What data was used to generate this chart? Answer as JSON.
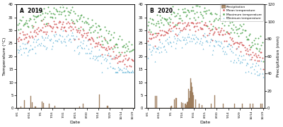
{
  "title_A": "A  2019",
  "title_B": "B  2020",
  "xlabel": "Date",
  "ylabel_left": "Temperature (°C)",
  "ylabel_right": "Precipitation (mm)",
  "x_ticks": [
    "6/1",
    "6/16",
    "7/1",
    "7/16",
    "7/31",
    "8/15",
    "8/30",
    "9/14",
    "9/29",
    "10/14",
    "10/29"
  ],
  "xtick_pos": [
    0,
    15,
    30,
    45,
    60,
    75,
    90,
    105,
    120,
    135,
    150
  ],
  "ylim_temp": [
    0,
    40
  ],
  "ylim_precip": [
    0,
    120
  ],
  "yticks_left": [
    0,
    5,
    10,
    15,
    20,
    25,
    30,
    35,
    40
  ],
  "yticks_right": [
    0,
    20,
    40,
    60,
    80,
    100,
    120
  ],
  "colors": {
    "mean": "#d45f5f",
    "max": "#5aaa5a",
    "min": "#6ab8d8",
    "precip_fill": "#b09070",
    "precip_edge": "#806040"
  },
  "background": "#ffffff",
  "panel_bg": "#ffffff",
  "legend_labels": [
    "Precipitation",
    "Mean temperature",
    "Maximum temperature",
    "Minimum temperature"
  ]
}
